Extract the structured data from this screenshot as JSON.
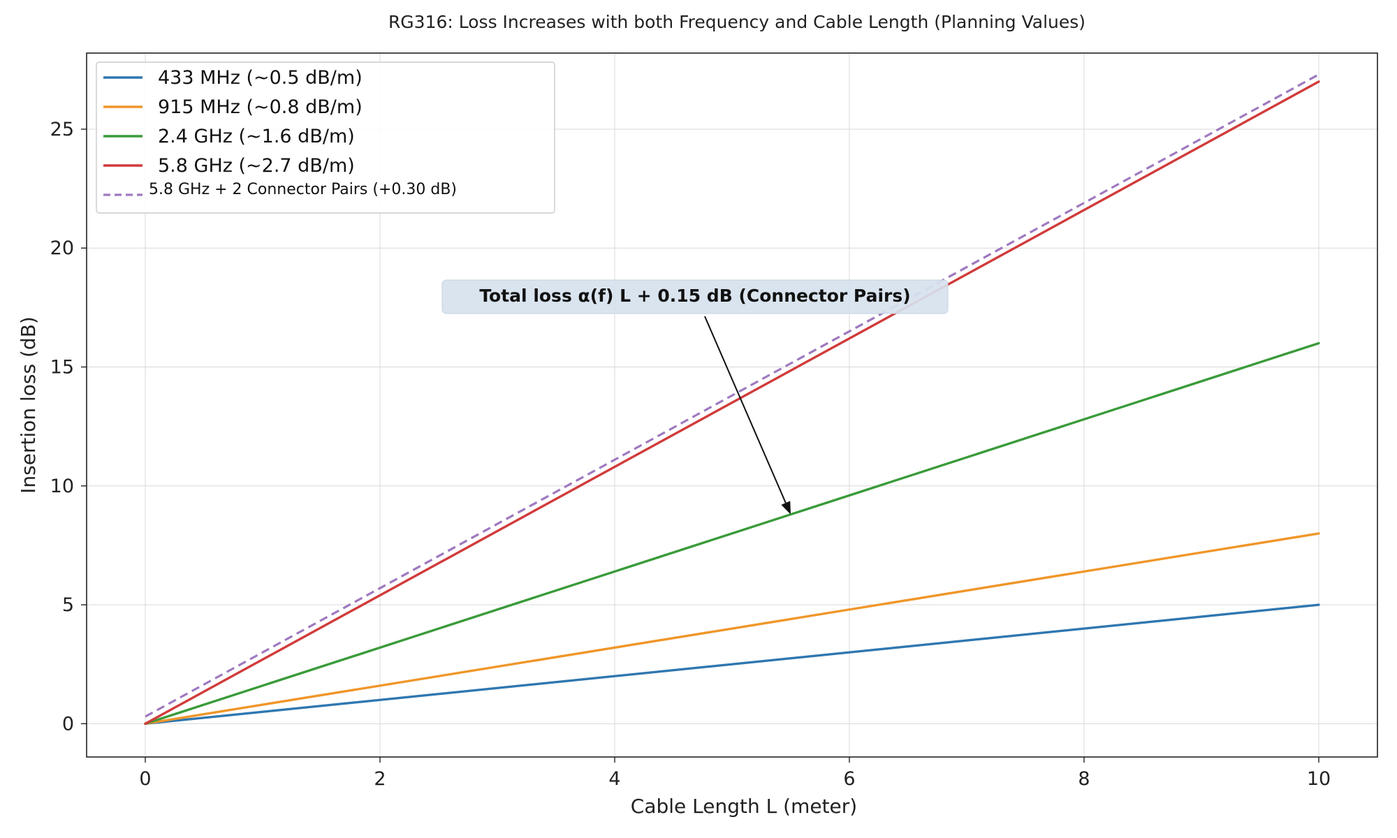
{
  "chart_data": {
    "type": "line",
    "title": "RG316: Loss Increases with both Frequency and Cable Length (Planning Values)",
    "xlabel": "Cable Length L (meter)",
    "ylabel": "Insertion loss (dB)",
    "xlim": [
      -0.5,
      10.5
    ],
    "ylim": [
      -1.4,
      28.2
    ],
    "xticks": [
      0,
      2,
      4,
      6,
      8,
      10
    ],
    "yticks": [
      0,
      5,
      10,
      15,
      20,
      25
    ],
    "grid": true,
    "legend_position": "top-left",
    "series": [
      {
        "name": "433 MHz  (~0.5 dB/m)",
        "color": "#2f77b0",
        "dash": "solid",
        "x": [
          0,
          10
        ],
        "y": [
          0,
          5
        ]
      },
      {
        "name": "915 MHz  (~0.8 dB/m)",
        "color": "#f0962a",
        "dash": "solid",
        "x": [
          0,
          10
        ],
        "y": [
          0,
          8
        ]
      },
      {
        "name": "2.4 GHz  (~1.6 dB/m)",
        "color": "#3a9b3a",
        "dash": "solid",
        "x": [
          0,
          10
        ],
        "y": [
          0,
          16
        ]
      },
      {
        "name": "5.8 GHz  (~2.7 dB/m)",
        "color": "#d13b3b",
        "dash": "solid",
        "x": [
          0,
          10
        ],
        "y": [
          0,
          27
        ]
      },
      {
        "name": "5.8 GHz + 2 Connector Pairs (+0.30 dB)",
        "color": "#9f79bf",
        "dash": "dashed",
        "x": [
          0,
          10
        ],
        "y": [
          0.3,
          27.3
        ]
      }
    ],
    "annotation": {
      "text": "Total loss   α(f)   L + 0.15 dB   (Connector Pairs)",
      "arrow_target": {
        "x": 5.5,
        "y": 8.8
      }
    }
  }
}
